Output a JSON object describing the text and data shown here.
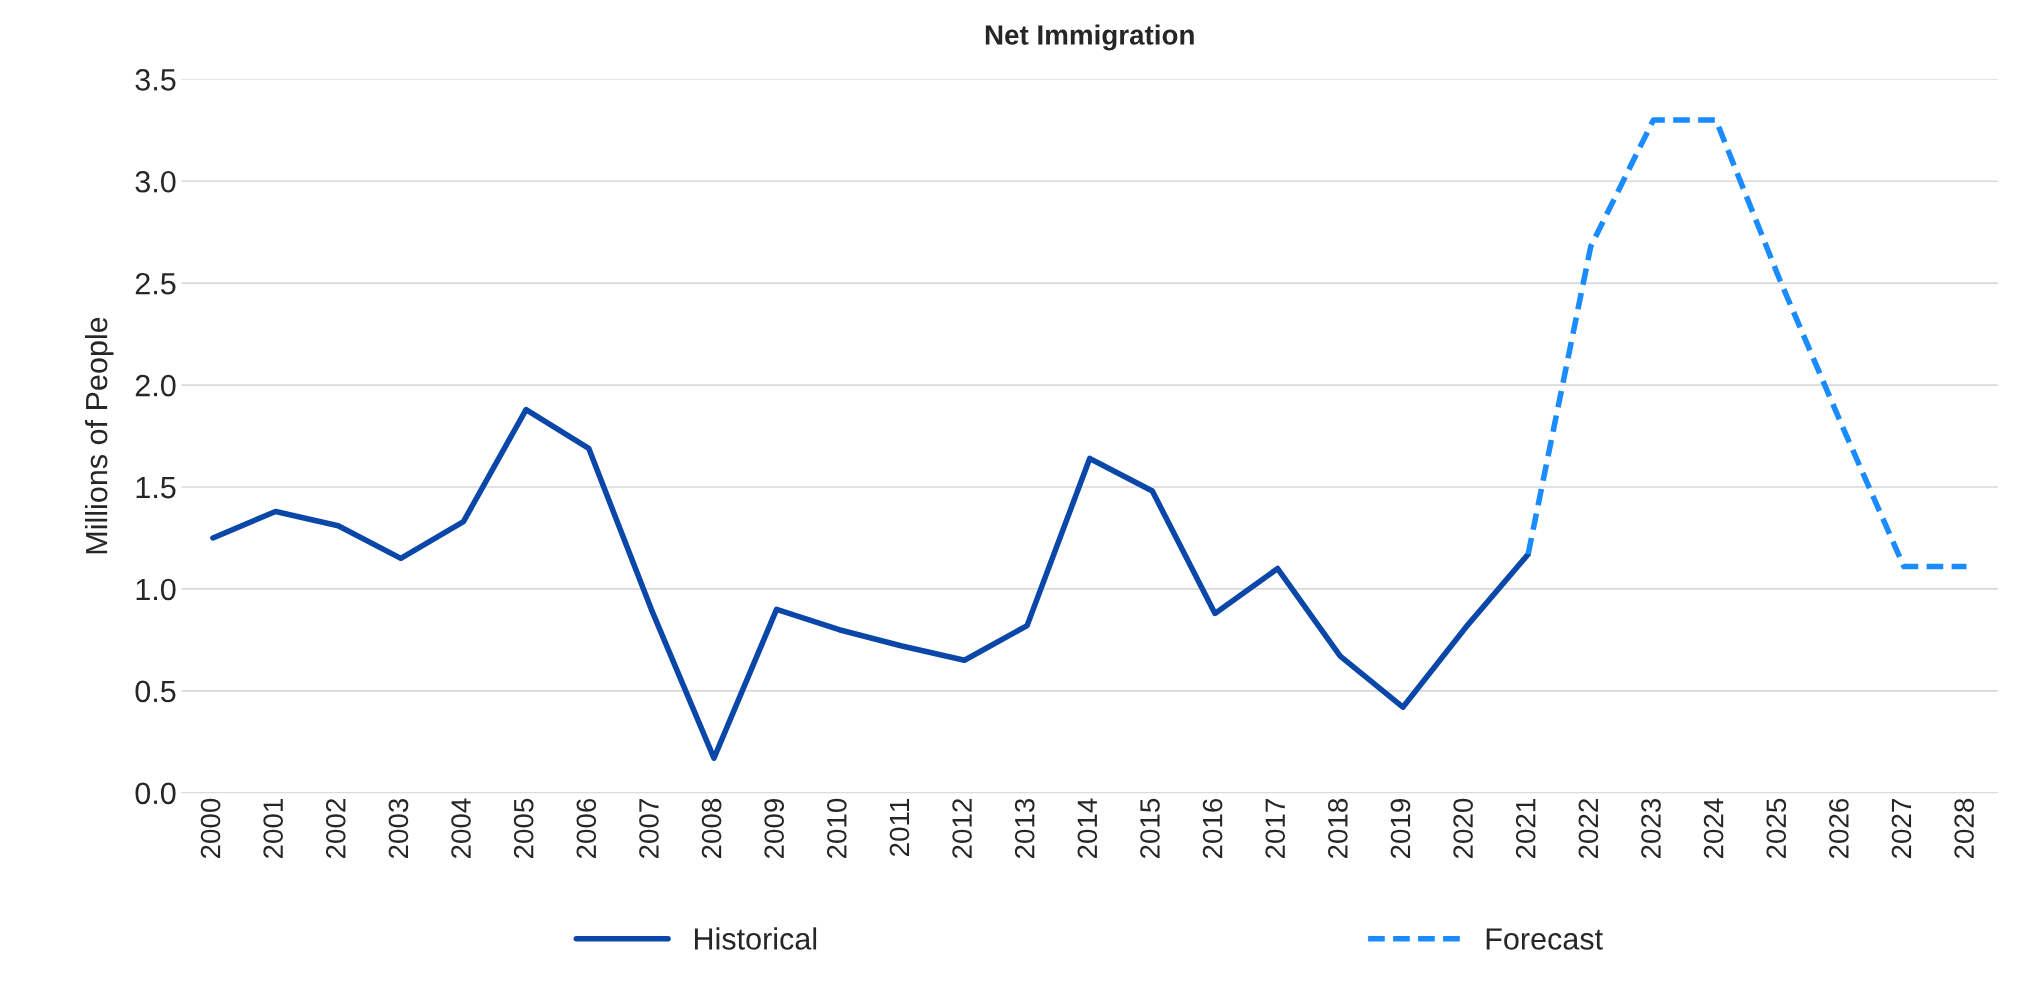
{
  "chart_data": {
    "type": "line",
    "title": "Net Immigration",
    "ylabel": "Millions of People",
    "categories": [
      "2000",
      "2001",
      "2002",
      "2003",
      "2004",
      "2005",
      "2006",
      "2007",
      "2008",
      "2009",
      "2010",
      "2011",
      "2012",
      "2013",
      "2014",
      "2015",
      "2016",
      "2017",
      "2018",
      "2019",
      "2020",
      "2021",
      "2022",
      "2023",
      "2024",
      "2025",
      "2026",
      "2027",
      "2028"
    ],
    "series": [
      {
        "name": "Historical",
        "color": "#0a47a9",
        "line_style": "solid",
        "values": [
          1.25,
          1.38,
          1.31,
          1.15,
          1.33,
          1.88,
          1.69,
          0.9,
          0.17,
          0.9,
          0.8,
          0.72,
          0.65,
          0.82,
          1.64,
          1.48,
          0.88,
          1.1,
          0.67,
          0.42,
          0.81,
          1.17,
          null,
          null,
          null,
          null,
          null,
          null,
          null
        ]
      },
      {
        "name": "Forecast",
        "color": "#1a8cff",
        "line_style": "dashed",
        "values": [
          null,
          null,
          null,
          null,
          null,
          null,
          null,
          null,
          null,
          null,
          null,
          null,
          null,
          null,
          null,
          null,
          null,
          null,
          null,
          null,
          null,
          1.17,
          2.68,
          3.3,
          3.3,
          2.53,
          1.81,
          1.11,
          1.11
        ]
      }
    ],
    "ylim": [
      0,
      3.5
    ],
    "yticks": [
      {
        "value": 0,
        "label": "0.0"
      },
      {
        "value": 0.5,
        "label": "0.5"
      },
      {
        "value": 1,
        "label": "1.0"
      },
      {
        "value": 1.5,
        "label": "1.5"
      },
      {
        "value": 2,
        "label": "2.0"
      },
      {
        "value": 2.5,
        "label": "2.5"
      },
      {
        "value": 3,
        "label": "3.0"
      },
      {
        "value": 3.5,
        "label": "3.5"
      }
    ],
    "grid": "y",
    "legend": "bottom",
    "marker": "none"
  }
}
